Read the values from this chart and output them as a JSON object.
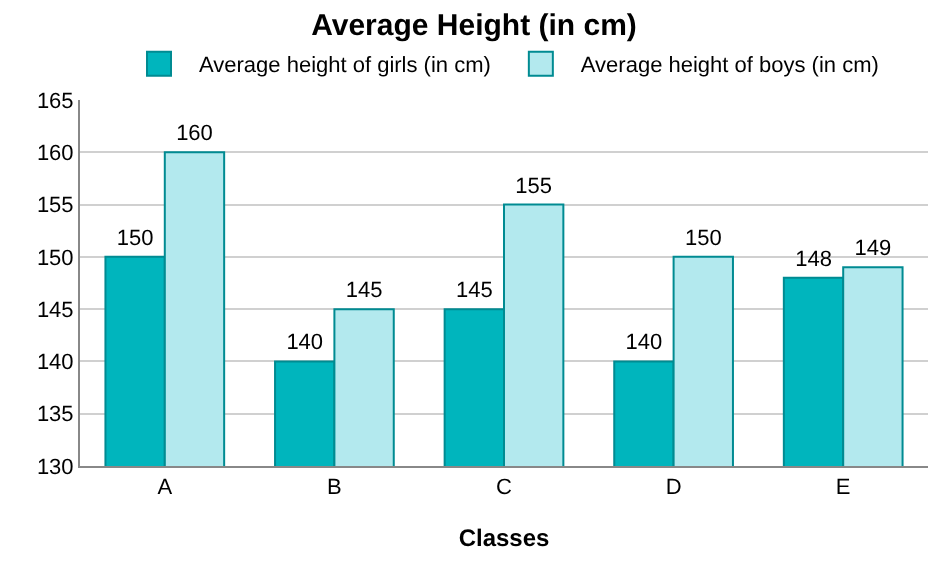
{
  "chart_data": {
    "type": "bar",
    "title": "Average Height (in cm)",
    "xlabel": "Classes",
    "categories": [
      "A",
      "B",
      "C",
      "D",
      "E"
    ],
    "series": [
      {
        "name": "Average height of girls (in cm)",
        "color": "#00b5bd",
        "values": [
          150,
          140,
          145,
          140,
          148
        ]
      },
      {
        "name": "Average height of boys (in cm)",
        "color": "#b3e9ee",
        "values": [
          160,
          145,
          155,
          150,
          149
        ]
      }
    ],
    "ylim": [
      130,
      165
    ],
    "yticks": [
      130,
      135,
      140,
      145,
      150,
      155,
      160,
      165
    ],
    "grid": "y",
    "legend": "top",
    "data_labels": true
  }
}
